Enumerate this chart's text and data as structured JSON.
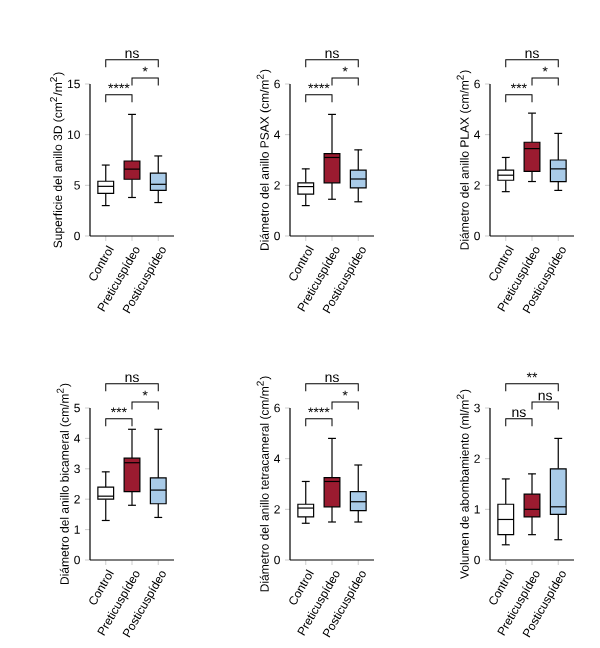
{
  "chart_data": [
    {
      "type": "box",
      "ylabel": "Superficie del anillo 3D (cm$^{2}$/m$^{2}$)",
      "categories": [
        "Control",
        "Preticuspídeo",
        "Posticuspídeo"
      ],
      "colors": [
        "#ffffff",
        "#9b1b30",
        "#a9cbe8"
      ],
      "ylim": [
        0,
        15
      ],
      "yticks": [
        0,
        5,
        10,
        15
      ],
      "annotations": [
        "ns",
        "****",
        "*"
      ],
      "boxes": [
        {
          "low": 3.0,
          "q1": 4.2,
          "median": 4.9,
          "q3": 5.4,
          "high": 7.0
        },
        {
          "low": 3.8,
          "q1": 5.6,
          "median": 6.6,
          "q3": 7.4,
          "high": 12.0
        },
        {
          "low": 3.3,
          "q1": 4.5,
          "median": 5.1,
          "q3": 6.2,
          "high": 7.9
        }
      ]
    },
    {
      "type": "box",
      "ylabel": "Diámetro del anillo PSAX (cm/m$^{2}$)",
      "categories": [
        "Control",
        "Preticuspídeo",
        "Posticuspídeo"
      ],
      "colors": [
        "#ffffff",
        "#9b1b30",
        "#a9cbe8"
      ],
      "ylim": [
        0,
        6
      ],
      "yticks": [
        0,
        2,
        4,
        6
      ],
      "annotations": [
        "ns",
        "****",
        "*"
      ],
      "boxes": [
        {
          "low": 1.2,
          "q1": 1.65,
          "median": 1.95,
          "q3": 2.1,
          "high": 2.65
        },
        {
          "low": 1.45,
          "q1": 2.1,
          "median": 3.1,
          "q3": 3.25,
          "high": 4.8
        },
        {
          "low": 1.35,
          "q1": 1.9,
          "median": 2.25,
          "q3": 2.6,
          "high": 3.4
        }
      ]
    },
    {
      "type": "box",
      "ylabel": "Diámetro del anillo PLAX (cm/m$^{2}$)",
      "categories": [
        "Control",
        "Preticuspídeo",
        "Posticuspídeo"
      ],
      "colors": [
        "#ffffff",
        "#9b1b30",
        "#a9cbe8"
      ],
      "ylim": [
        0,
        6
      ],
      "yticks": [
        0,
        2,
        4,
        6
      ],
      "annotations": [
        "ns",
        "***",
        "*"
      ],
      "boxes": [
        {
          "low": 1.75,
          "q1": 2.2,
          "median": 2.4,
          "q3": 2.6,
          "high": 3.1
        },
        {
          "low": 2.15,
          "q1": 2.55,
          "median": 3.45,
          "q3": 3.7,
          "high": 4.85
        },
        {
          "low": 1.8,
          "q1": 2.15,
          "median": 2.65,
          "q3": 3.0,
          "high": 4.05
        }
      ]
    },
    {
      "type": "box",
      "ylabel": "Diámetro del anillo bicameral (cm/m$^{2}$)",
      "categories": [
        "Control",
        "Preticuspídeo",
        "Posticuspídeo"
      ],
      "colors": [
        "#ffffff",
        "#9b1b30",
        "#a9cbe8"
      ],
      "ylim": [
        0,
        5
      ],
      "yticks": [
        0,
        1,
        2,
        3,
        4,
        5
      ],
      "annotations": [
        "ns",
        "***",
        "*"
      ],
      "boxes": [
        {
          "low": 1.3,
          "q1": 2.0,
          "median": 2.1,
          "q3": 2.4,
          "high": 2.9
        },
        {
          "low": 1.8,
          "q1": 2.25,
          "median": 3.2,
          "q3": 3.35,
          "high": 4.3
        },
        {
          "low": 1.4,
          "q1": 1.85,
          "median": 2.3,
          "q3": 2.7,
          "high": 4.3
        }
      ]
    },
    {
      "type": "box",
      "ylabel": "Diámetro del anillo tetracameral (cm/m$^{2}$)",
      "categories": [
        "Control",
        "Preticuspídeo",
        "Posticuspídeo"
      ],
      "colors": [
        "#ffffff",
        "#9b1b30",
        "#a9cbe8"
      ],
      "ylim": [
        0,
        6
      ],
      "yticks": [
        0,
        2,
        4,
        6
      ],
      "annotations": [
        "ns",
        "****",
        "*"
      ],
      "boxes": [
        {
          "low": 1.45,
          "q1": 1.7,
          "median": 2.05,
          "q3": 2.2,
          "high": 3.1
        },
        {
          "low": 1.5,
          "q1": 2.1,
          "median": 3.1,
          "q3": 3.25,
          "high": 4.8
        },
        {
          "low": 1.5,
          "q1": 1.95,
          "median": 2.3,
          "q3": 2.7,
          "high": 3.75
        }
      ]
    },
    {
      "type": "box",
      "ylabel": "Volumen de abombamiento (ml/m$^{2}$)",
      "categories": [
        "Control",
        "Preticuspídeo",
        "Posticuspídeo"
      ],
      "colors": [
        "#ffffff",
        "#9b1b30",
        "#a9cbe8"
      ],
      "ylim": [
        0,
        3
      ],
      "yticks": [
        0,
        1,
        2,
        3
      ],
      "annotations": [
        "**",
        "ns",
        "ns"
      ],
      "boxes": [
        {
          "low": 0.3,
          "q1": 0.5,
          "median": 0.8,
          "q3": 1.1,
          "high": 1.6
        },
        {
          "low": 0.5,
          "q1": 0.85,
          "median": 1.0,
          "q3": 1.3,
          "high": 1.7
        },
        {
          "low": 0.4,
          "q1": 0.9,
          "median": 1.05,
          "q3": 1.8,
          "high": 2.4
        }
      ]
    }
  ]
}
